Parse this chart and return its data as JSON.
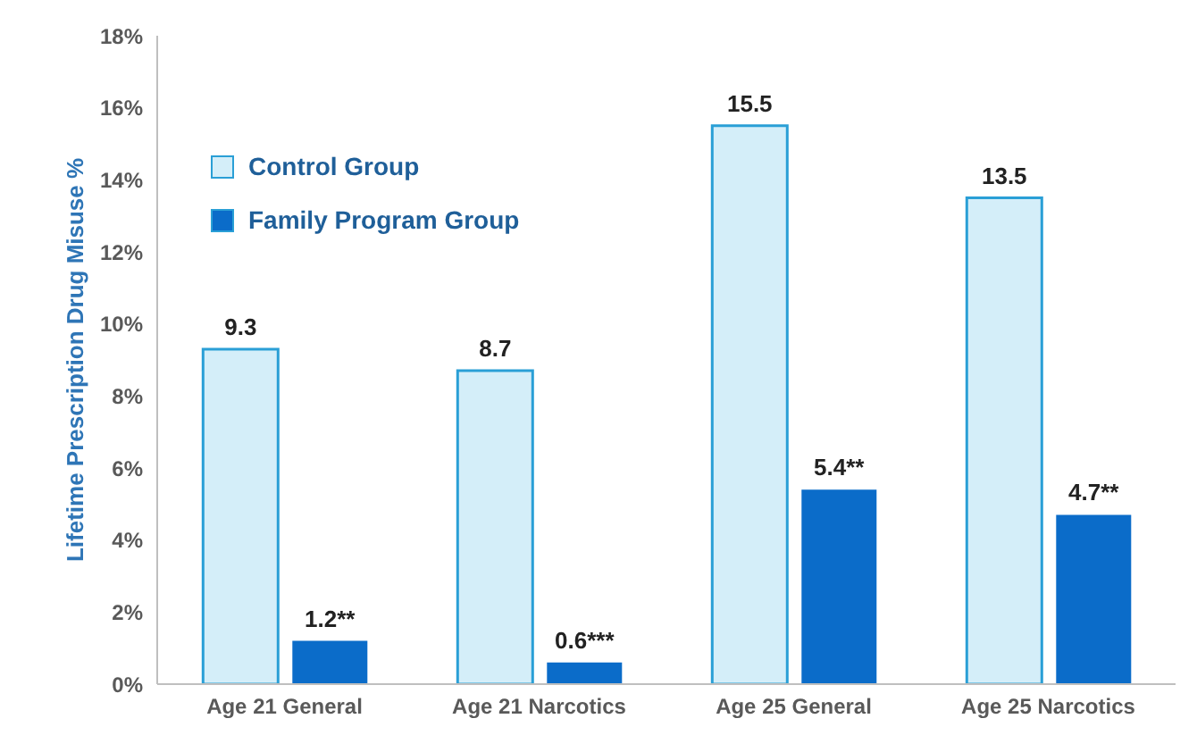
{
  "chart_data": {
    "type": "bar",
    "ylabel": "Lifetime Prescription Drug Misuse %",
    "categories": [
      "Age 21 General",
      "Age 21 Narcotics",
      "Age 25 General",
      "Age 25 Narcotics"
    ],
    "series": [
      {
        "name": "Control Group",
        "color": "#d4eef9",
        "values": [
          9.3,
          8.7,
          15.5,
          13.5
        ],
        "value_labels": [
          "9.3",
          "8.7",
          "15.5",
          "13.5"
        ]
      },
      {
        "name": "Family Program Group",
        "color": "#0b6cc9",
        "values": [
          1.2,
          0.6,
          5.4,
          4.7
        ],
        "value_labels": [
          "1.2**",
          "0.6***",
          "5.4**",
          "4.7**"
        ]
      }
    ],
    "ylim": [
      0,
      18
    ],
    "yticks": [
      {
        "value": 0,
        "label": "0%"
      },
      {
        "value": 2,
        "label": "2%"
      },
      {
        "value": 4,
        "label": "4%"
      },
      {
        "value": 6,
        "label": "6%"
      },
      {
        "value": 8,
        "label": "8%"
      },
      {
        "value": 10,
        "label": "10%"
      },
      {
        "value": 12,
        "label": "12%"
      },
      {
        "value": 14,
        "label": "14%"
      },
      {
        "value": 16,
        "label": "16%"
      },
      {
        "value": 18,
        "label": "18%"
      }
    ],
    "grid": false,
    "legend": "top left"
  }
}
